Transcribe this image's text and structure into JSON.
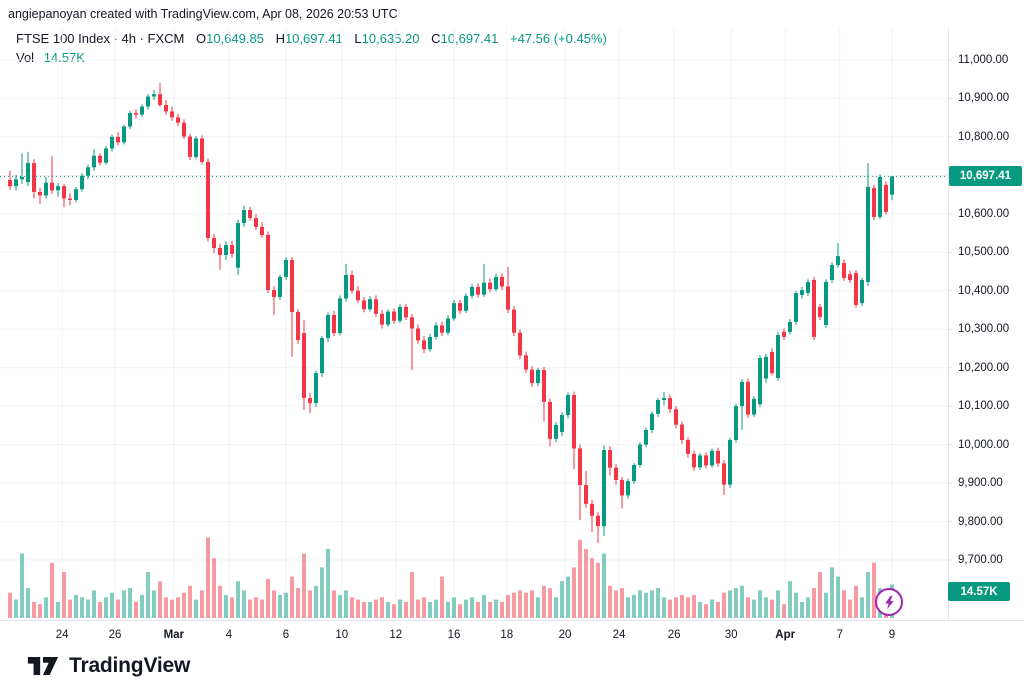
{
  "attribution": "angiepanoyan created with TradingView.com, Apr 08, 2026 20:53 UTC",
  "legend": {
    "symbol_line": "FTSE 100 Index · 4h · FXCM",
    "o_label": "O",
    "o_value": "10,649.85",
    "h_label": "H",
    "h_value": "10,697.41",
    "l_label": "L",
    "l_value": "10,635.20",
    "c_label": "C",
    "c_value": "10,697.41",
    "change": "+47.56 (+0.45%)",
    "vol_label": "Vol",
    "vol_value": "14.57K"
  },
  "price_axis": {
    "last_price_label": "10,697.41",
    "volume_label": "14.57K",
    "labels": [
      {
        "text": "11,000.00",
        "price": 11000
      },
      {
        "text": "10,900.00",
        "price": 10900
      },
      {
        "text": "10,800.00",
        "price": 10800
      },
      {
        "text": "10,600.00",
        "price": 10600
      },
      {
        "text": "10,500.00",
        "price": 10500
      },
      {
        "text": "10,400.00",
        "price": 10400
      },
      {
        "text": "10,300.00",
        "price": 10300
      },
      {
        "text": "10,200.00",
        "price": 10200
      },
      {
        "text": "10,100.00",
        "price": 10100
      },
      {
        "text": "10,000.00",
        "price": 10000
      },
      {
        "text": "9,900.00",
        "price": 9900
      },
      {
        "text": "9,800.00",
        "price": 9800
      },
      {
        "text": "9,700.00",
        "price": 9700
      }
    ]
  },
  "branding": "TradingView",
  "colors": {
    "up": "#089981",
    "down": "#F23645",
    "up_volume": "rgba(8,153,129,0.5)",
    "down_volume": "rgba(242,54,69,0.5)",
    "grid": "#f0f3fa",
    "axis_line": "#e0e3eb",
    "badge": "#089981",
    "lightning": "#9c27b0",
    "text": "#131722"
  },
  "chart_data": {
    "type": "candlestick",
    "title": "FTSE 100 Index",
    "interval": "4h",
    "exchange": "FXCM",
    "last_price": 10697.41,
    "last_volume_k": 14.57,
    "price_gridlines": [
      9700,
      9800,
      9900,
      10000,
      10100,
      10200,
      10300,
      10400,
      10500,
      10600,
      10700,
      10800,
      10900,
      11000
    ],
    "ylim": [
      9549,
      11083
    ],
    "time_axis": {
      "ticks": [
        {
          "label": "24",
          "i": 8.7
        },
        {
          "label": "26",
          "i": 17.5
        },
        {
          "label": "Mar",
          "i": 27.3,
          "bold": true
        },
        {
          "label": "4",
          "i": 36.5
        },
        {
          "label": "6",
          "i": 46
        },
        {
          "label": "10",
          "i": 55.3
        },
        {
          "label": "12",
          "i": 64.3
        },
        {
          "label": "16",
          "i": 74
        },
        {
          "label": "18",
          "i": 82.8
        },
        {
          "label": "20",
          "i": 92.5
        },
        {
          "label": "24",
          "i": 101.5
        },
        {
          "label": "26",
          "i": 110.7
        },
        {
          "label": "30",
          "i": 120.2
        },
        {
          "label": "Apr",
          "i": 129.2,
          "bold": true
        },
        {
          "label": "7",
          "i": 138.3
        },
        {
          "label": "9",
          "i": 147
        }
      ]
    },
    "candles_format": [
      "open",
      "high",
      "low",
      "close",
      "volume_k"
    ],
    "candles": [
      [
        10688,
        10712,
        10662,
        10672,
        11
      ],
      [
        10672,
        10701,
        10660,
        10690,
        8
      ],
      [
        10690,
        10758,
        10678,
        10696,
        28
      ],
      [
        10683,
        10761,
        10672,
        10732,
        13
      ],
      [
        10732,
        10742,
        10640,
        10657,
        7
      ],
      [
        10657,
        10668,
        10626,
        10648,
        6
      ],
      [
        10648,
        10696,
        10640,
        10681,
        9
      ],
      [
        10681,
        10750,
        10652,
        10661,
        24
      ],
      [
        10661,
        10680,
        10645,
        10672,
        7
      ],
      [
        10672,
        10678,
        10617,
        10640,
        20
      ],
      [
        10640,
        10654,
        10622,
        10636,
        8
      ],
      [
        10636,
        10670,
        10630,
        10664,
        10
      ],
      [
        10664,
        10706,
        10658,
        10699,
        9
      ],
      [
        10699,
        10728,
        10690,
        10721,
        8
      ],
      [
        10721,
        10768,
        10712,
        10751,
        12
      ],
      [
        10751,
        10757,
        10726,
        10733,
        7
      ],
      [
        10733,
        10776,
        10728,
        10770,
        9
      ],
      [
        10770,
        10806,
        10762,
        10800,
        11
      ],
      [
        10800,
        10812,
        10778,
        10786,
        8
      ],
      [
        10786,
        10832,
        10780,
        10827,
        12
      ],
      [
        10827,
        10868,
        10820,
        10862,
        13
      ],
      [
        10862,
        10872,
        10848,
        10858,
        7
      ],
      [
        10858,
        10884,
        10852,
        10879,
        10
      ],
      [
        10879,
        10912,
        10871,
        10905,
        20
      ],
      [
        10905,
        10922,
        10896,
        10911,
        12
      ],
      [
        10911,
        10940,
        10878,
        10883,
        16
      ],
      [
        10883,
        10896,
        10858,
        10866,
        9
      ],
      [
        10866,
        10878,
        10842,
        10851,
        8
      ],
      [
        10851,
        10860,
        10828,
        10837,
        9
      ],
      [
        10837,
        10846,
        10794,
        10801,
        11
      ],
      [
        10801,
        10808,
        10740,
        10748,
        14
      ],
      [
        10748,
        10802,
        10742,
        10796,
        8
      ],
      [
        10796,
        10804,
        10728,
        10735,
        12
      ],
      [
        10735,
        10744,
        10528,
        10537,
        35
      ],
      [
        10537,
        10548,
        10498,
        10511,
        26
      ],
      [
        10511,
        10522,
        10454,
        10493,
        14
      ],
      [
        10493,
        10528,
        10480,
        10519,
        10
      ],
      [
        10519,
        10530,
        10486,
        10496,
        9
      ],
      [
        10460,
        10585,
        10441,
        10576,
        16
      ],
      [
        10576,
        10621,
        10566,
        10610,
        12
      ],
      [
        10610,
        10618,
        10582,
        10589,
        8
      ],
      [
        10589,
        10600,
        10558,
        10566,
        9
      ],
      [
        10566,
        10578,
        10538,
        10545,
        8
      ],
      [
        10545,
        10554,
        10394,
        10402,
        17
      ],
      [
        10402,
        10412,
        10337,
        10384,
        12
      ],
      [
        10384,
        10442,
        10376,
        10436,
        10
      ],
      [
        10436,
        10487,
        10428,
        10480,
        11
      ],
      [
        10480,
        10488,
        10228,
        10345,
        18
      ],
      [
        10345,
        10352,
        10262,
        10272,
        13
      ],
      [
        10290,
        10324,
        10090,
        10121,
        28
      ],
      [
        10121,
        10134,
        10082,
        10108,
        12
      ],
      [
        10108,
        10192,
        10098,
        10186,
        14
      ],
      [
        10186,
        10282,
        10176,
        10277,
        22
      ],
      [
        10277,
        10344,
        10266,
        10337,
        30
      ],
      [
        10337,
        10348,
        10282,
        10290,
        12
      ],
      [
        10290,
        10388,
        10284,
        10380,
        10
      ],
      [
        10380,
        10470,
        10372,
        10441,
        12
      ],
      [
        10441,
        10452,
        10392,
        10400,
        9
      ],
      [
        10400,
        10412,
        10368,
        10375,
        8
      ],
      [
        10375,
        10384,
        10344,
        10352,
        7
      ],
      [
        10352,
        10386,
        10346,
        10378,
        7
      ],
      [
        10378,
        10388,
        10332,
        10340,
        8
      ],
      [
        10340,
        10350,
        10302,
        10312,
        9
      ],
      [
        10312,
        10352,
        10306,
        10346,
        7
      ],
      [
        10346,
        10354,
        10314,
        10322,
        6
      ],
      [
        10322,
        10366,
        10316,
        10358,
        8
      ],
      [
        10358,
        10366,
        10324,
        10331,
        7
      ],
      [
        10331,
        10340,
        10194,
        10302,
        20
      ],
      [
        10302,
        10312,
        10262,
        10271,
        8
      ],
      [
        10271,
        10282,
        10238,
        10248,
        9
      ],
      [
        10248,
        10288,
        10242,
        10280,
        7
      ],
      [
        10280,
        10318,
        10274,
        10310,
        8
      ],
      [
        10310,
        10320,
        10282,
        10291,
        18
      ],
      [
        10291,
        10336,
        10284,
        10328,
        7
      ],
      [
        10328,
        10376,
        10322,
        10368,
        9
      ],
      [
        10368,
        10376,
        10340,
        10348,
        6
      ],
      [
        10348,
        10394,
        10342,
        10387,
        8
      ],
      [
        10387,
        10418,
        10380,
        10410,
        9
      ],
      [
        10410,
        10420,
        10382,
        10390,
        7
      ],
      [
        10390,
        10470,
        10384,
        10421,
        10
      ],
      [
        10421,
        10432,
        10396,
        10404,
        7
      ],
      [
        10404,
        10444,
        10398,
        10436,
        8
      ],
      [
        10436,
        10446,
        10402,
        10411,
        7
      ],
      [
        10411,
        10462,
        10342,
        10351,
        10
      ],
      [
        10351,
        10360,
        10282,
        10291,
        11
      ],
      [
        10291,
        10300,
        10222,
        10232,
        12
      ],
      [
        10232,
        10242,
        10186,
        10195,
        11
      ],
      [
        10195,
        10204,
        10150,
        10160,
        12
      ],
      [
        10160,
        10200,
        10152,
        10194,
        9
      ],
      [
        10194,
        10202,
        10060,
        10111,
        14
      ],
      [
        10111,
        10120,
        9995,
        10015,
        13
      ],
      [
        10015,
        10058,
        10006,
        10051,
        9
      ],
      [
        10033,
        10084,
        10022,
        10077,
        16
      ],
      [
        10077,
        10136,
        10068,
        10129,
        18
      ],
      [
        10129,
        10138,
        9936,
        9990,
        22
      ],
      [
        9990,
        10000,
        9804,
        9895,
        34
      ],
      [
        9895,
        9932,
        9836,
        9846,
        30
      ],
      [
        9846,
        9856,
        9772,
        9815,
        26
      ],
      [
        9815,
        9824,
        9744,
        9788,
        24
      ],
      [
        9788,
        9998,
        9762,
        9986,
        28
      ],
      [
        9986,
        9996,
        9920,
        9940,
        14
      ],
      [
        9940,
        9950,
        9896,
        9908,
        12
      ],
      [
        9908,
        9916,
        9834,
        9868,
        13
      ],
      [
        9868,
        9912,
        9860,
        9905,
        9
      ],
      [
        9905,
        9952,
        9898,
        9947,
        10
      ],
      [
        9947,
        10006,
        9940,
        10000,
        12
      ],
      [
        10000,
        10044,
        9994,
        10038,
        11
      ],
      [
        10038,
        10086,
        10030,
        10080,
        12
      ],
      [
        10080,
        10122,
        10072,
        10116,
        13
      ],
      [
        10116,
        10137,
        10102,
        10121,
        9
      ],
      [
        10121,
        10130,
        10082,
        10092,
        8
      ],
      [
        10092,
        10100,
        10042,
        10052,
        9
      ],
      [
        10052,
        10060,
        10002,
        10012,
        10
      ],
      [
        10012,
        10020,
        9966,
        9976,
        9
      ],
      [
        9976,
        9984,
        9932,
        9941,
        10
      ],
      [
        9941,
        9978,
        9934,
        9972,
        7
      ],
      [
        9972,
        9980,
        9938,
        9946,
        6
      ],
      [
        9946,
        9990,
        9940,
        9984,
        8
      ],
      [
        9984,
        9992,
        9942,
        9951,
        7
      ],
      [
        9951,
        9960,
        9869,
        9896,
        11
      ],
      [
        9896,
        10018,
        9888,
        10012,
        12
      ],
      [
        10012,
        10106,
        10004,
        10100,
        13
      ],
      [
        10100,
        10170,
        10038,
        10163,
        14
      ],
      [
        10163,
        10172,
        10070,
        10078,
        9
      ],
      [
        10078,
        10126,
        10072,
        10119,
        8
      ],
      [
        10105,
        10232,
        10098,
        10225,
        12
      ],
      [
        10172,
        10236,
        10160,
        10228,
        9
      ],
      [
        10241,
        10250,
        10180,
        10186,
        8
      ],
      [
        10173,
        10292,
        10166,
        10285,
        12
      ],
      [
        10293,
        10302,
        10272,
        10280,
        6
      ],
      [
        10293,
        10326,
        10286,
        10319,
        16
      ],
      [
        10319,
        10400,
        10312,
        10394,
        11
      ],
      [
        10389,
        10410,
        10380,
        10402,
        7
      ],
      [
        10394,
        10430,
        10386,
        10423,
        9
      ],
      [
        10428,
        10436,
        10272,
        10280,
        13
      ],
      [
        10358,
        10366,
        10324,
        10332,
        20
      ],
      [
        10311,
        10430,
        10304,
        10423,
        11
      ],
      [
        10428,
        10474,
        10420,
        10467,
        22
      ],
      [
        10467,
        10524,
        10460,
        10490,
        18
      ],
      [
        10472,
        10482,
        10426,
        10433,
        12
      ],
      [
        10443,
        10452,
        10420,
        10428,
        8
      ],
      [
        10446,
        10454,
        10356,
        10363,
        14
      ],
      [
        10368,
        10434,
        10360,
        10428,
        9
      ],
      [
        10423,
        10732,
        10412,
        10670,
        20
      ],
      [
        10667,
        10676,
        10584,
        10592,
        24
      ],
      [
        10592,
        10702,
        10586,
        10696,
        13
      ],
      [
        10675,
        10684,
        10598,
        10605,
        10
      ],
      [
        10649.85,
        10697.41,
        10635.2,
        10697.41,
        14.57
      ]
    ]
  }
}
